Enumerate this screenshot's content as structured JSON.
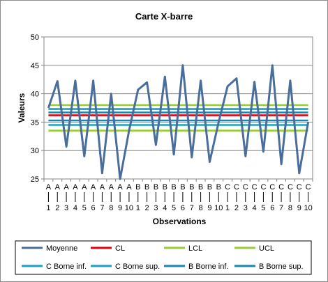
{
  "chart_data": {
    "type": "line",
    "title": "Carte X-barre",
    "xlabel": "Observations",
    "ylabel": "Valeurs",
    "ylim": [
      25,
      50
    ],
    "yticks": [
      25,
      30,
      35,
      40,
      45,
      50
    ],
    "categories": [
      [
        "A",
        "1"
      ],
      [
        "A",
        "2"
      ],
      [
        "A",
        "3"
      ],
      [
        "A",
        "4"
      ],
      [
        "A",
        "5"
      ],
      [
        "A",
        "6"
      ],
      [
        "A",
        "7"
      ],
      [
        "A",
        "8"
      ],
      [
        "A",
        "9"
      ],
      [
        "A",
        "10"
      ],
      [
        "B",
        "1"
      ],
      [
        "B",
        "2"
      ],
      [
        "B",
        "3"
      ],
      [
        "B",
        "4"
      ],
      [
        "B",
        "5"
      ],
      [
        "B",
        "6"
      ],
      [
        "B",
        "7"
      ],
      [
        "B",
        "8"
      ],
      [
        "B",
        "9"
      ],
      [
        "B",
        "10"
      ],
      [
        "C",
        "1"
      ],
      [
        "C",
        "2"
      ],
      [
        "C",
        "3"
      ],
      [
        "C",
        "4"
      ],
      [
        "C",
        "5"
      ],
      [
        "C",
        "6"
      ],
      [
        "C",
        "7"
      ],
      [
        "C",
        "8"
      ],
      [
        "C",
        "9"
      ],
      [
        "C",
        "10"
      ]
    ],
    "series": [
      {
        "name": "Moyenne",
        "color": "#4A6E9B",
        "values": [
          37.5,
          42.2,
          30.7,
          42.3,
          29.0,
          42.3,
          26.0,
          40.0,
          25.0,
          33.5,
          40.7,
          42.0,
          31.0,
          43.0,
          29.3,
          45.0,
          28.8,
          42.3,
          28.0,
          35.0,
          41.3,
          42.7,
          29.0,
          42.1,
          29.8,
          45.0,
          27.6,
          42.3,
          26.0,
          35.0
        ]
      },
      {
        "name": "CL",
        "color": "#E8000B",
        "values": [
          36.2,
          36.2,
          36.2,
          36.2,
          36.2,
          36.2,
          36.2,
          36.2,
          36.2,
          36.2,
          36.2,
          36.2,
          36.2,
          36.2,
          36.2,
          36.2,
          36.2,
          36.2,
          36.2,
          36.2,
          36.2,
          36.2,
          36.2,
          36.2,
          36.2,
          36.2,
          36.2,
          36.2,
          36.2,
          36.2
        ]
      },
      {
        "name": "LCL",
        "color": "#9ACD32",
        "values": [
          33.5,
          33.5,
          33.5,
          33.5,
          33.5,
          33.5,
          33.5,
          33.5,
          33.5,
          33.5,
          33.5,
          33.5,
          33.5,
          33.5,
          33.5,
          33.5,
          33.5,
          33.5,
          33.5,
          33.5,
          33.5,
          33.5,
          33.5,
          33.5,
          33.5,
          33.5,
          33.5,
          33.5,
          33.5,
          33.5
        ]
      },
      {
        "name": "UCL",
        "color": "#9ACD32",
        "values": [
          38.0,
          38.0,
          38.0,
          38.0,
          38.0,
          38.0,
          38.0,
          38.0,
          38.0,
          38.0,
          38.0,
          38.0,
          38.0,
          38.0,
          38.0,
          38.0,
          38.0,
          38.0,
          38.0,
          38.0,
          38.0,
          38.0,
          38.0,
          38.0,
          38.0,
          38.0,
          38.0,
          38.0,
          38.0,
          38.0
        ]
      },
      {
        "name": "C Borne inf.",
        "color": "#1AA0C8",
        "values": [
          34.5,
          34.5,
          34.5,
          34.5,
          34.5,
          34.5,
          34.5,
          34.5,
          34.5,
          34.5,
          34.5,
          34.5,
          34.5,
          34.5,
          34.5,
          34.5,
          34.5,
          34.5,
          34.5,
          34.5,
          34.5,
          34.5,
          34.5,
          34.5,
          34.5,
          34.5,
          34.5,
          34.5,
          34.5,
          34.5
        ]
      },
      {
        "name": "C Borne sup.",
        "color": "#1AA0C8",
        "values": [
          37.3,
          37.3,
          37.3,
          37.3,
          37.3,
          37.3,
          37.3,
          37.3,
          37.3,
          37.3,
          37.3,
          37.3,
          37.3,
          37.3,
          37.3,
          37.3,
          37.3,
          37.3,
          37.3,
          37.3,
          37.3,
          37.3,
          37.3,
          37.3,
          37.3,
          37.3,
          37.3,
          37.3,
          37.3,
          37.3
        ]
      },
      {
        "name": "B Borne inf.",
        "color": "#1487B3",
        "values": [
          35.3,
          35.3,
          35.3,
          35.3,
          35.3,
          35.3,
          35.3,
          35.3,
          35.3,
          35.3,
          35.3,
          35.3,
          35.3,
          35.3,
          35.3,
          35.3,
          35.3,
          35.3,
          35.3,
          35.3,
          35.3,
          35.3,
          35.3,
          35.3,
          35.3,
          35.3,
          35.3,
          35.3,
          35.3,
          35.3
        ]
      },
      {
        "name": "B Borne sup.",
        "color": "#1487B3",
        "values": [
          36.7,
          36.7,
          36.7,
          36.7,
          36.7,
          36.7,
          36.7,
          36.7,
          36.7,
          36.7,
          36.7,
          36.7,
          36.7,
          36.7,
          36.7,
          36.7,
          36.7,
          36.7,
          36.7,
          36.7,
          36.7,
          36.7,
          36.7,
          36.7,
          36.7,
          36.7,
          36.7,
          36.7,
          36.7,
          36.7
        ]
      }
    ],
    "grid": true,
    "legend_position": "bottom"
  }
}
